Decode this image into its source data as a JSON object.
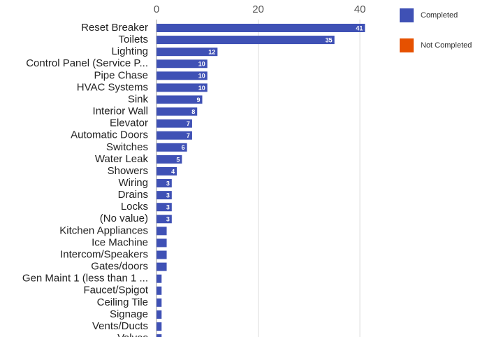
{
  "chart_data": {
    "type": "hbar-stacked",
    "categories": [
      "Reset Breaker",
      "Toilets",
      "Lighting",
      "Control Panel (Service P...",
      "Pipe Chase",
      "HVAC Systems",
      "Sink",
      "Interior Wall",
      "Elevator",
      "Automatic Doors",
      "Switches",
      "Water Leak",
      "Showers",
      "Wiring",
      "Drains",
      "Locks",
      "(No value)",
      "Kitchen Appliances",
      "Ice Machine",
      "Intercom/Speakers",
      "Gates/doors",
      "Gen Maint 1 (less than 1 ...",
      "Faucet/Spigot",
      "Ceiling Tile",
      "Signage",
      "Vents/Ducts",
      "Valves"
    ],
    "series": [
      {
        "name": "Completed",
        "color": "#3f51b5",
        "values": [
          41,
          35,
          12,
          10,
          10,
          10,
          9,
          8,
          7,
          7,
          6,
          5,
          4,
          3,
          3,
          3,
          3,
          2,
          2,
          2,
          2,
          1,
          1,
          1,
          1,
          1,
          1
        ]
      },
      {
        "name": "Not Completed",
        "color": "#e65100",
        "values": [
          0,
          0,
          0,
          0,
          0,
          0,
          0,
          0,
          0,
          0,
          0,
          0,
          0,
          0,
          0,
          0,
          0,
          0,
          0,
          0,
          0,
          0,
          0,
          0,
          0,
          0,
          0
        ]
      }
    ],
    "xlim": [
      0,
      41.5
    ],
    "xticks": [
      0,
      20,
      40
    ],
    "grid": true,
    "legend": "right"
  }
}
